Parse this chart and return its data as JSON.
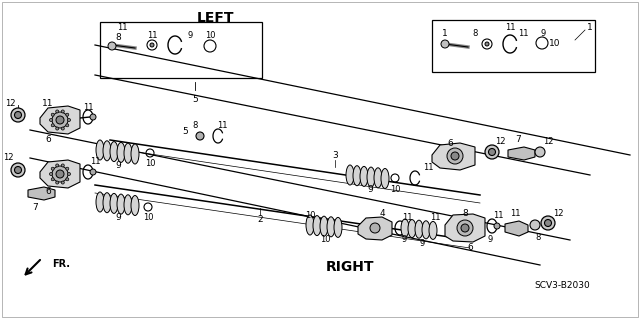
{
  "background_color": "#ffffff",
  "line_color": "#000000",
  "left_label": "LEFT",
  "right_label": "RIGHT",
  "fr_label": "FR.",
  "part_number": "SCV3-B2030",
  "fig_width": 6.4,
  "fig_height": 3.19,
  "dpi": 100
}
